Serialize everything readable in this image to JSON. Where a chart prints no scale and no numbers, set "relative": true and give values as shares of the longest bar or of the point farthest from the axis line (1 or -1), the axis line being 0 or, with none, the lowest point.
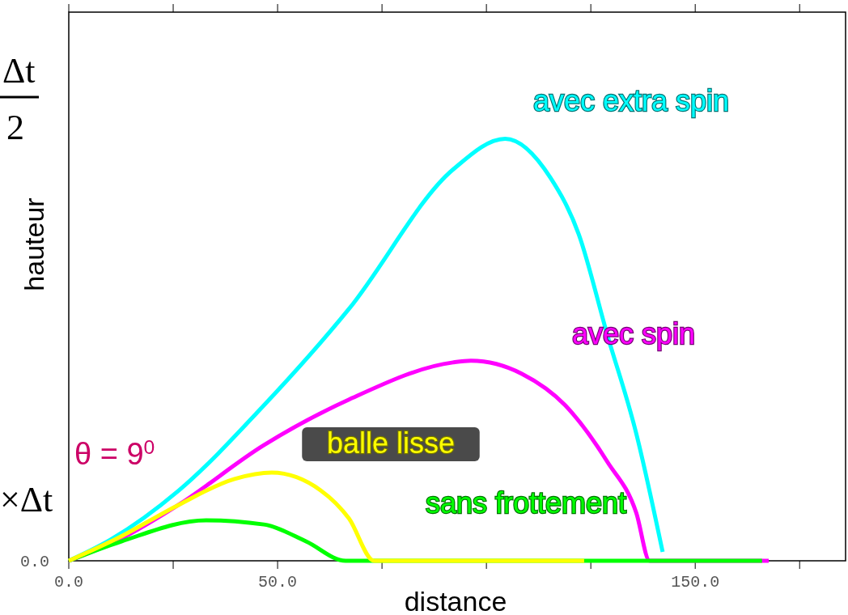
{
  "chart_data": {
    "type": "line",
    "relative": true,
    "xlabel": "distance",
    "ylabel": "hauteur",
    "xlim": [
      0,
      186
    ],
    "xticks": [
      {
        "value": 0,
        "label": "0.0"
      },
      {
        "value": 25,
        "label": null
      },
      {
        "value": 50,
        "label": "50.0"
      },
      {
        "value": 75,
        "label": null
      },
      {
        "value": 100,
        "label": null
      },
      {
        "value": 125,
        "label": null
      },
      {
        "value": 150,
        "label": "150.0"
      },
      {
        "value": 175,
        "label": null
      }
    ],
    "series": [
      {
        "name": "avec extra spin",
        "color": "#00ffff",
        "x": [
          0,
          10,
          26.4,
          46.7,
          67.1,
          92,
          104.5,
          115.3,
          122.1,
          128.9,
          135.9,
          142.2
        ],
        "values": [
          0,
          0.05,
          0.167,
          0.368,
          0.597,
          0.927,
          1,
          0.908,
          0.774,
          0.537,
          0.301,
          0.021
        ]
      },
      {
        "name": "avec spin",
        "color": "#ff00ff",
        "x": [
          0,
          12,
          26.2,
          46.7,
          67.1,
          92,
          96.3,
          108.5,
          118.8,
          129,
          135.9,
          139.1,
          167.6
        ],
        "values": [
          0,
          0.05,
          0.132,
          0.274,
          0.382,
          0.47,
          0.474,
          0.443,
          0.369,
          0.234,
          0.113,
          0,
          0
        ]
      },
      {
        "name": "sans frottement",
        "color": "#00ff00",
        "x": [
          0,
          12.6,
          32.9,
          46.7,
          56.8,
          66.3,
          166
        ],
        "values": [
          0,
          0.046,
          0.096,
          0.086,
          0.046,
          0,
          0
        ]
      },
      {
        "name": "balle lisse",
        "color": "#ffff00",
        "x": [
          0,
          12,
          26.2,
          39.7,
          48.6,
          60.3,
          67.1,
          73.1,
          123.4
        ],
        "values": [
          0,
          0.055,
          0.132,
          0.194,
          0.209,
          0.167,
          0.1,
          0,
          0
        ]
      }
    ],
    "annotations": [
      "θ = 9$^{0}$",
      "Δt",
      "2",
      "×Δt",
      "0.0"
    ]
  }
}
